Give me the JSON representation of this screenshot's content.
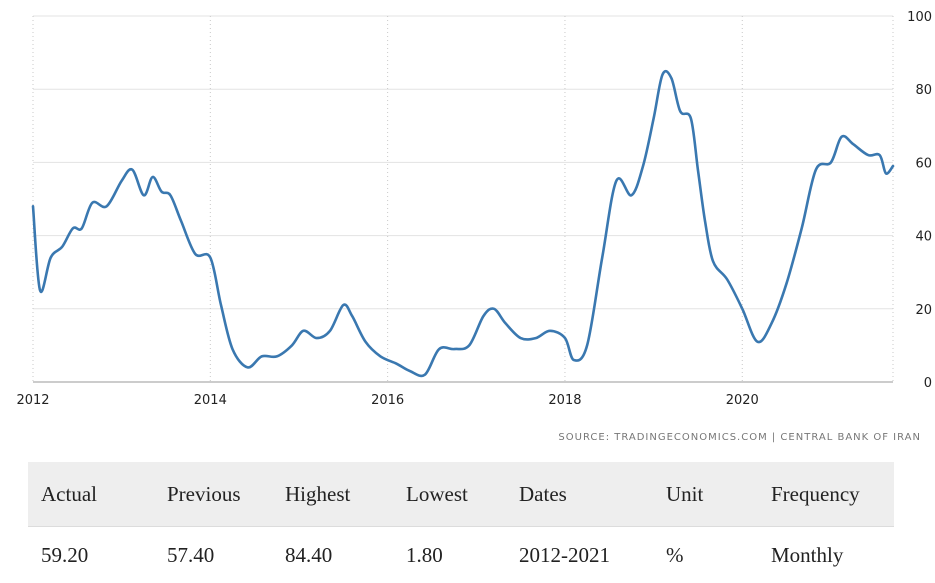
{
  "chart_data": {
    "type": "line",
    "title": "",
    "xlabel": "",
    "ylabel": "",
    "xlim": [
      2012.0,
      2021.7
    ],
    "ylim": [
      0,
      100
    ],
    "x_ticks": [
      "2012",
      "2014",
      "2016",
      "2018",
      "2020"
    ],
    "y_ticks": [
      "0",
      "20",
      "40",
      "60",
      "80",
      "100"
    ],
    "grid": true,
    "y_axis_side": "right",
    "legend": "none",
    "series": [
      {
        "color": "#3a78b0",
        "x": [
          2012.0,
          2012.08,
          2012.2,
          2012.33,
          2012.45,
          2012.55,
          2012.67,
          2012.83,
          2013.0,
          2013.12,
          2013.25,
          2013.35,
          2013.45,
          2013.55,
          2013.67,
          2013.83,
          2014.0,
          2014.12,
          2014.25,
          2014.42,
          2014.58,
          2014.75,
          2014.92,
          2015.05,
          2015.2,
          2015.35,
          2015.5,
          2015.6,
          2015.75,
          2015.92,
          2016.1,
          2016.25,
          2016.42,
          2016.58,
          2016.75,
          2016.92,
          2017.08,
          2017.2,
          2017.33,
          2017.5,
          2017.67,
          2017.83,
          2018.0,
          2018.1,
          2018.25,
          2018.42,
          2018.58,
          2018.75,
          2018.88,
          2019.0,
          2019.1,
          2019.2,
          2019.3,
          2019.42,
          2019.5,
          2019.58,
          2019.67,
          2019.83,
          2020.0,
          2020.17,
          2020.33,
          2020.5,
          2020.67,
          2020.83,
          2021.0,
          2021.12,
          2021.25,
          2021.42,
          2021.55,
          2021.62,
          2021.7
        ],
        "y": [
          48,
          25,
          34,
          37,
          42,
          42,
          49,
          48,
          55,
          58,
          51,
          56,
          52,
          51,
          44,
          35,
          34,
          21,
          9,
          4,
          7,
          7,
          10,
          14,
          12,
          14,
          21,
          18,
          11,
          7,
          5,
          3,
          2,
          9,
          9,
          10,
          18,
          20,
          16,
          12,
          12,
          14,
          12,
          6,
          10,
          34,
          55,
          51,
          59,
          72,
          84,
          83,
          74,
          72,
          58,
          44,
          33,
          28,
          20,
          11,
          16,
          27,
          42,
          58,
          60,
          67,
          65,
          62,
          62,
          57,
          59
        ]
      }
    ]
  },
  "source": "SOURCE: TRADINGECONOMICS.COM | CENTRAL BANK OF IRAN",
  "stats": {
    "headers": [
      "Actual",
      "Previous",
      "Highest",
      "Lowest",
      "Dates",
      "Unit",
      "Frequency"
    ],
    "values": [
      "59.20",
      "57.40",
      "84.40",
      "1.80",
      "2012-2021",
      "%",
      "Monthly"
    ]
  }
}
